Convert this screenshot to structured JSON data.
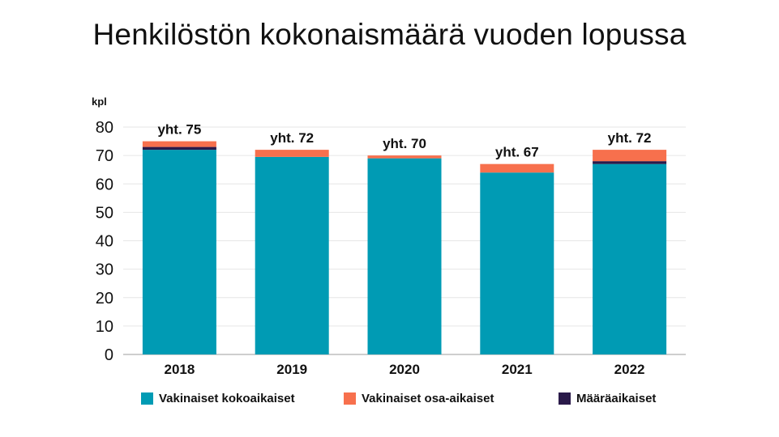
{
  "title": "Henkilöstön kokonaismäärä vuoden lopussa",
  "chart_data": {
    "type": "bar",
    "stacked": true,
    "title": "Henkilöstön kokonaismäärä vuoden lopussa",
    "ylabel": "kpl",
    "xlabel": "",
    "categories": [
      "2018",
      "2019",
      "2020",
      "2021",
      "2022"
    ],
    "ylim": [
      0,
      80
    ],
    "yticks": [
      0,
      10,
      20,
      30,
      40,
      50,
      60,
      70,
      80
    ],
    "grid": true,
    "legend_position": "bottom",
    "series": [
      {
        "name": "Vakinaiset kokoaikaiset",
        "color": "#009bb4",
        "values": [
          72,
          69.5,
          69,
          64,
          67
        ]
      },
      {
        "name": "Määräaikaiset",
        "color": "#2a1a4a",
        "values": [
          1,
          0,
          0,
          0,
          1
        ]
      },
      {
        "name": "Vakinaiset osa-aikaiset",
        "color": "#f7704d",
        "values": [
          2,
          2.5,
          1,
          3,
          4
        ]
      }
    ],
    "totals": [
      75,
      72,
      70,
      67,
      72
    ],
    "total_labels": [
      "yht. 75",
      "yht. 72",
      "yht. 70",
      "yht. 67",
      "yht. 72"
    ],
    "legend_order": [
      "Vakinaiset kokoaikaiset",
      "Vakinaiset osa-aikaiset",
      "Määräaikaiset"
    ]
  }
}
